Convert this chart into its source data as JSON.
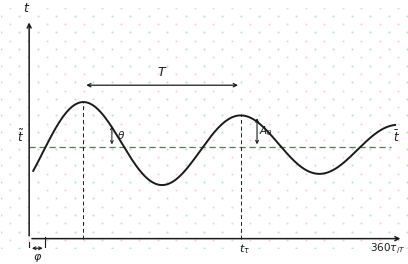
{
  "bg_color": "#ffffff",
  "line_color": "#1a1a1a",
  "dash_color": "#3a8a3a",
  "amplitude": 0.75,
  "decay_rate": 0.006,
  "omega": 0.01745,
  "phase_deg": 28,
  "xlim": [
    -0.05,
    1.05
  ],
  "ylim": [
    -1.1,
    1.2
  ],
  "dot_color_pink": "#f0a0d0",
  "dot_color_green": "#80d080"
}
